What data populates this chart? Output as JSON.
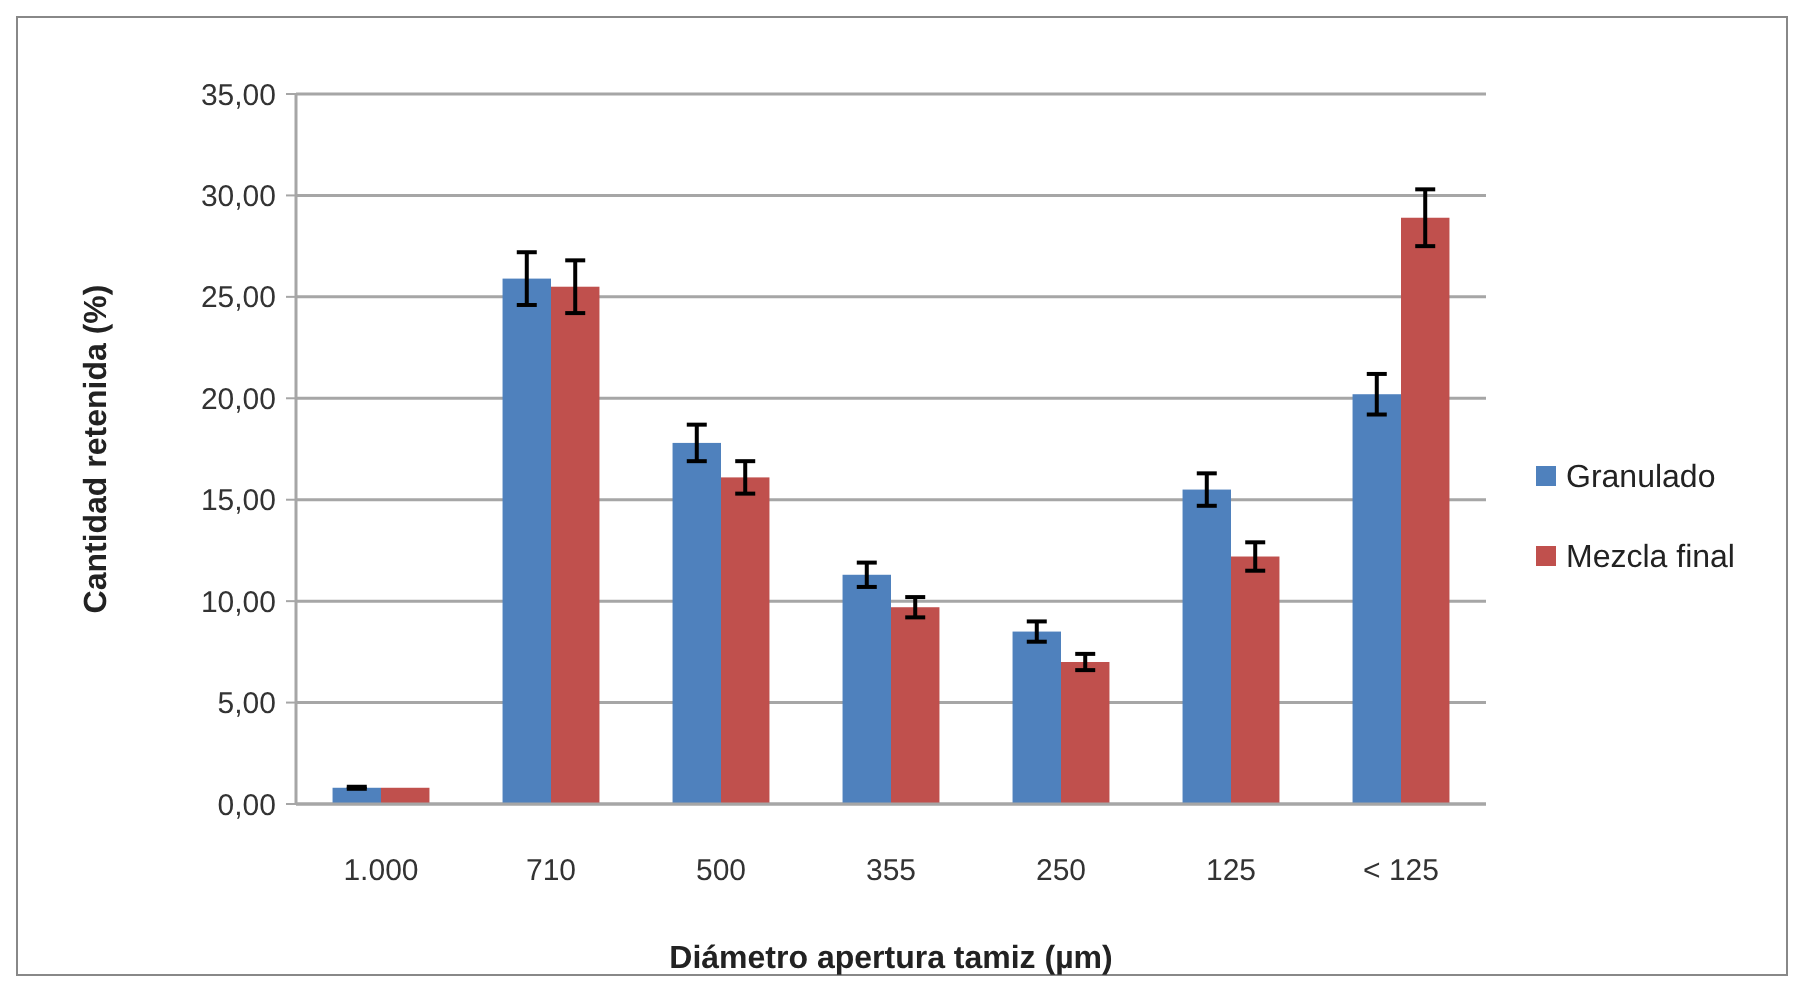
{
  "chart_data": {
    "type": "bar",
    "xlabel": "Diámetro apertura tamiz (µm)",
    "ylabel": "Cantidad retenida (%)",
    "categories": [
      "1.000",
      "710",
      "500",
      "355",
      "250",
      "125",
      "< 125"
    ],
    "series": [
      {
        "name": "Granulado",
        "color": "#4f81bd",
        "values": [
          0.8,
          25.9,
          17.8,
          11.3,
          8.5,
          15.5,
          20.2
        ],
        "errors": [
          0.05,
          1.3,
          0.9,
          0.6,
          0.5,
          0.8,
          1.0
        ]
      },
      {
        "name": "Mezcla final",
        "color": "#c0504d",
        "values": [
          0.8,
          25.5,
          16.1,
          9.7,
          7.0,
          12.2,
          28.9
        ],
        "errors": [
          null,
          1.3,
          0.8,
          0.5,
          0.4,
          0.7,
          1.4
        ]
      }
    ],
    "ylim": [
      0,
      35
    ],
    "yticks": [
      {
        "value": 0,
        "label": "0,00"
      },
      {
        "value": 5,
        "label": "5,00"
      },
      {
        "value": 10,
        "label": "10,00"
      },
      {
        "value": 15,
        "label": "15,00"
      },
      {
        "value": 20,
        "label": "20,00"
      },
      {
        "value": 25,
        "label": "25,00"
      },
      {
        "value": 30,
        "label": "30,00"
      },
      {
        "value": 35,
        "label": "35,00"
      }
    ],
    "grid": "y",
    "legend": "right"
  }
}
